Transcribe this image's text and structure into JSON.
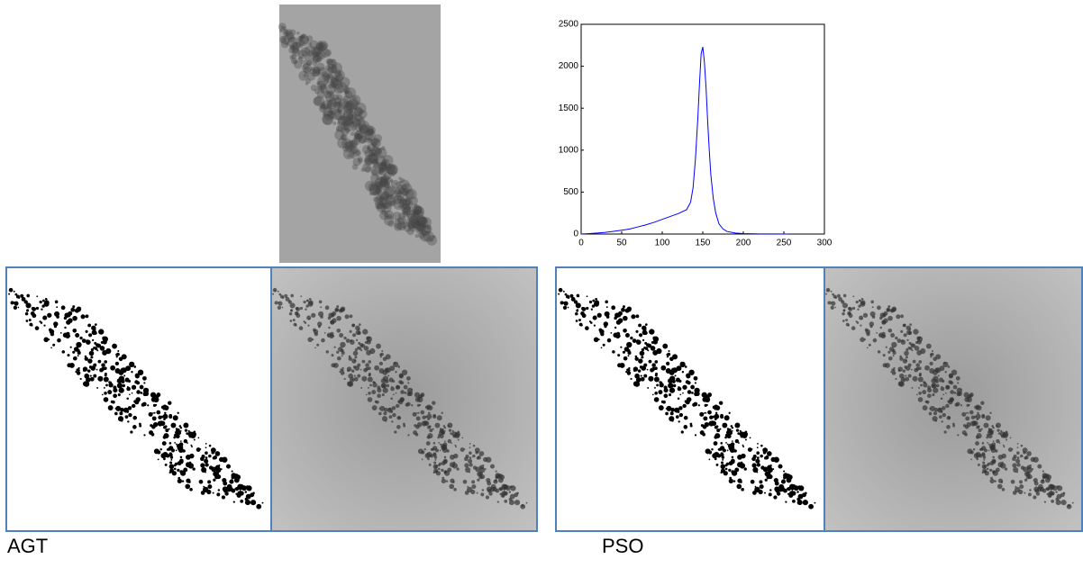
{
  "chart_data": {
    "type": "line",
    "x": [
      0,
      10,
      20,
      30,
      40,
      50,
      60,
      70,
      80,
      90,
      100,
      110,
      120,
      130,
      135,
      138,
      141,
      144,
      146,
      148,
      150,
      152,
      154,
      156,
      158,
      160,
      163,
      166,
      170,
      175,
      180,
      190,
      200,
      220,
      240,
      255
    ],
    "series": [
      {
        "color": "#0000ff",
        "values": [
          0,
          5,
          12,
          20,
          32,
          45,
          60,
          85,
          110,
          140,
          175,
          210,
          245,
          290,
          380,
          550,
          900,
          1400,
          1800,
          2150,
          2230,
          2050,
          1750,
          1350,
          1000,
          700,
          420,
          250,
          120,
          60,
          30,
          12,
          5,
          2,
          1,
          0
        ]
      }
    ],
    "xlim": [
      0,
      300
    ],
    "xticks": [
      0,
      50,
      100,
      150,
      200,
      250,
      300
    ],
    "ylim": [
      0,
      2500
    ],
    "yticks": [
      0,
      500,
      1000,
      1500,
      2000,
      2500
    ]
  },
  "labels": [
    "AGT",
    "PSO"
  ]
}
